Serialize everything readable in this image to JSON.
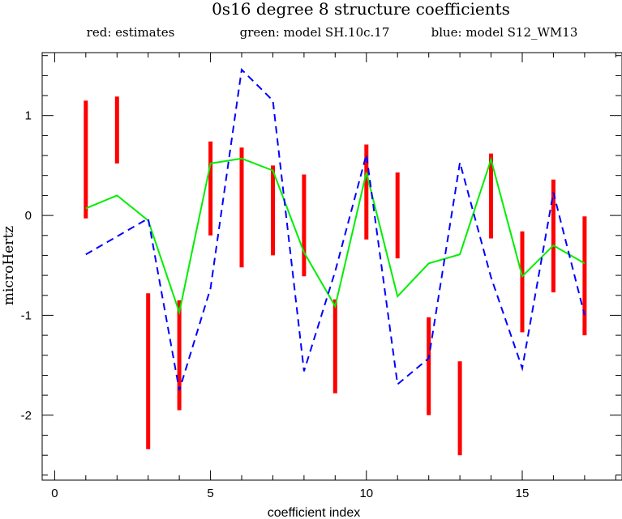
{
  "chart_data": {
    "type": "line",
    "title": "0s16 degree 8 structure coefficients",
    "xlabel": "coefficient index",
    "ylabel": "microHertz",
    "xlim": [
      -0.4,
      18.2
    ],
    "ylim": [
      -2.65,
      1.63
    ],
    "xticks": [
      0,
      5,
      10,
      15
    ],
    "yticks": [
      1,
      0,
      -1,
      -2
    ],
    "xtick_labels": [
      "0",
      "5",
      "10",
      "15"
    ],
    "ytick_labels": [
      "1",
      "0",
      "-1",
      "-2"
    ],
    "legend_placement": "top",
    "estimates": {
      "name": "red: estimates",
      "color": "#ff0000",
      "x": [
        1,
        2,
        3,
        4,
        5,
        6,
        7,
        8,
        9,
        10,
        11,
        12,
        13,
        14,
        15,
        16,
        17
      ],
      "low": [
        -0.03,
        0.52,
        -2.34,
        -1.95,
        -0.2,
        -0.52,
        -0.4,
        -0.61,
        -1.78,
        -0.24,
        -0.43,
        -2.0,
        -2.4,
        -0.23,
        -1.17,
        -0.77,
        -1.2
      ],
      "high": [
        1.15,
        1.19,
        -0.78,
        -0.85,
        0.74,
        0.68,
        0.5,
        0.41,
        -0.84,
        0.71,
        0.43,
        -1.02,
        -1.46,
        0.62,
        -0.16,
        0.36,
        -0.01
      ]
    },
    "series": [
      {
        "name": "green: model SH.10c.17",
        "color": "#00ee00",
        "style": "solid",
        "x": [
          1,
          2,
          3,
          4,
          5,
          6,
          7,
          8,
          9,
          10,
          11,
          12,
          13,
          14,
          15,
          16,
          17
        ],
        "values": [
          0.07,
          0.2,
          -0.05,
          -0.97,
          0.52,
          0.57,
          0.45,
          -0.37,
          -0.91,
          0.43,
          -0.81,
          -0.48,
          -0.39,
          0.56,
          -0.61,
          -0.3,
          -0.48
        ]
      },
      {
        "name": "blue: model S12_WM13",
        "color": "#0000ff",
        "style": "dashed",
        "x": [
          1,
          2,
          3,
          4,
          5,
          6,
          7,
          8,
          9,
          10,
          11,
          12,
          13,
          14,
          15,
          16,
          17
        ],
        "values": [
          -0.39,
          -0.21,
          -0.03,
          -1.75,
          -0.73,
          1.46,
          1.15,
          -1.56,
          -0.56,
          0.61,
          -1.69,
          -1.43,
          0.53,
          -0.62,
          -1.53,
          0.23,
          -1.0
        ]
      }
    ]
  }
}
